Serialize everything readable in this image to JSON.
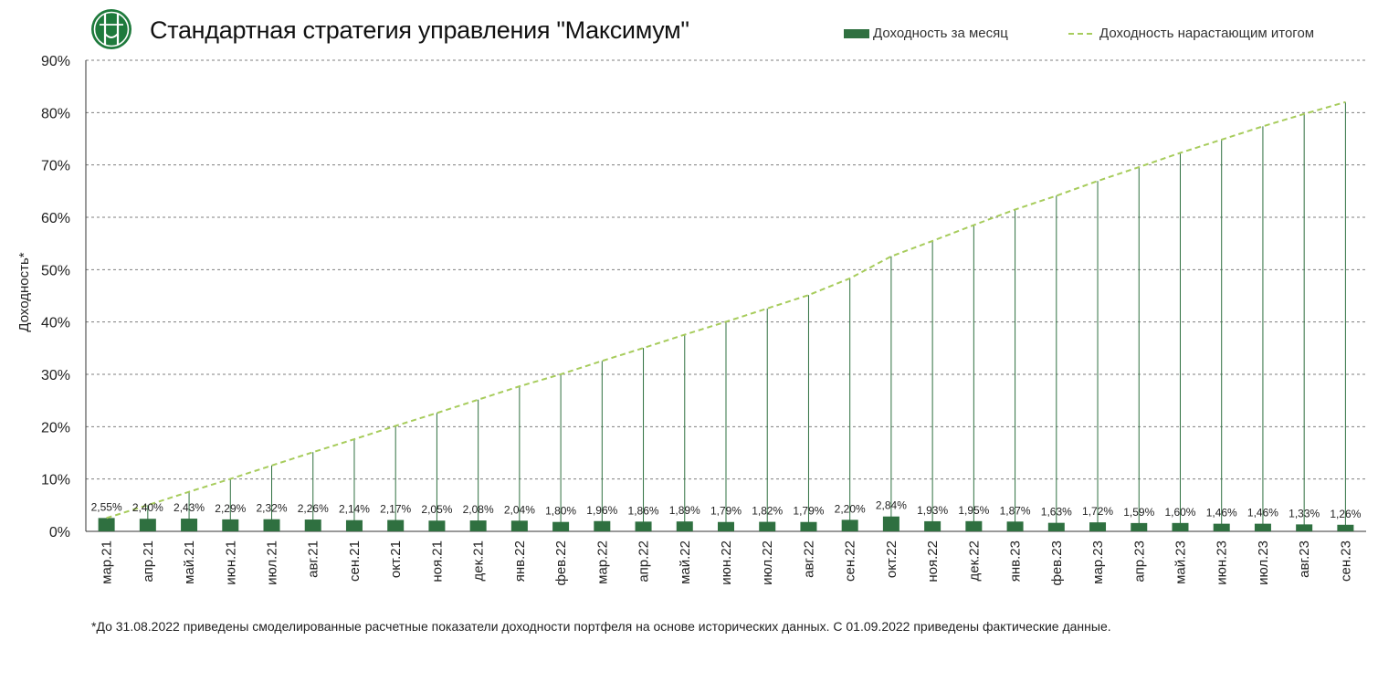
{
  "title": "Стандартная стратегия управления \"Максимум\"",
  "legend": {
    "bars": "Доходность за месяц",
    "line": "Доходность нарастающим итогом"
  },
  "footnote": "*До 31.08.2022 приведены смоделированные расчетные показатели доходности портфеля на основе исторических данных. С 01.09.2022 приведены фактические данные.",
  "colors": {
    "bar": "#2f7040",
    "line": "#a7cc5c",
    "drop_line": "#2f7040",
    "grid": "#7f7f7f",
    "logo": "#1e7a3c"
  },
  "logo_icon": "company-logo-icon",
  "chart_data": {
    "type": "bar",
    "title": "Стандартная стратегия управления \"Максимум\"",
    "ylabel": "Доходность*",
    "xlabel": "",
    "ylim": [
      0,
      90
    ],
    "yticks": [
      "0%",
      "10%",
      "20%",
      "30%",
      "40%",
      "50%",
      "60%",
      "70%",
      "80%",
      "90%"
    ],
    "grid": true,
    "legend_position": "top-right",
    "categories": [
      "мар.21",
      "апр.21",
      "май.21",
      "июн.21",
      "июл.21",
      "авг.21",
      "сен.21",
      "окт.21",
      "ноя.21",
      "дек.21",
      "янв.22",
      "фев.22",
      "мар.22",
      "апр.22",
      "май.22",
      "июн.22",
      "июл.22",
      "авг.22",
      "сен.22",
      "окт.22",
      "ноя.22",
      "дек.22",
      "янв.23",
      "фев.23",
      "мар.23",
      "апр.23",
      "май.23",
      "июн.23",
      "июл.23",
      "авг.23",
      "сен.23"
    ],
    "series": [
      {
        "name": "Доходность за месяц",
        "type": "bar",
        "values": [
          2.55,
          2.4,
          2.43,
          2.29,
          2.32,
          2.26,
          2.14,
          2.17,
          2.05,
          2.08,
          2.04,
          1.8,
          1.96,
          1.86,
          1.89,
          1.79,
          1.82,
          1.79,
          2.2,
          2.84,
          1.93,
          1.95,
          1.87,
          1.63,
          1.72,
          1.59,
          1.6,
          1.46,
          1.46,
          1.33,
          1.26
        ],
        "labels": [
          "2,55%",
          "2,40%",
          "2,43%",
          "2,29%",
          "2,32%",
          "2,26%",
          "2,14%",
          "2,17%",
          "2,05%",
          "2,08%",
          "2,04%",
          "1,80%",
          "1,96%",
          "1,86%",
          "1,89%",
          "1,79%",
          "1,82%",
          "1,79%",
          "2,20%",
          "2,84%",
          "1,93%",
          "1,95%",
          "1,87%",
          "1,63%",
          "1,72%",
          "1,59%",
          "1,60%",
          "1,46%",
          "1,46%",
          "1,33%",
          "1,26%"
        ]
      },
      {
        "name": "Доходность нарастающим итогом",
        "type": "line",
        "values": [
          2.55,
          5.01,
          7.56,
          10.02,
          12.58,
          15.13,
          17.6,
          20.15,
          22.61,
          25.16,
          27.71,
          30.01,
          32.56,
          35.03,
          37.58,
          40.04,
          42.59,
          45.14,
          48.33,
          52.54,
          55.48,
          58.51,
          61.48,
          64.11,
          66.94,
          69.59,
          72.31,
          74.83,
          77.38,
          79.74,
          82.01
        ]
      }
    ]
  }
}
